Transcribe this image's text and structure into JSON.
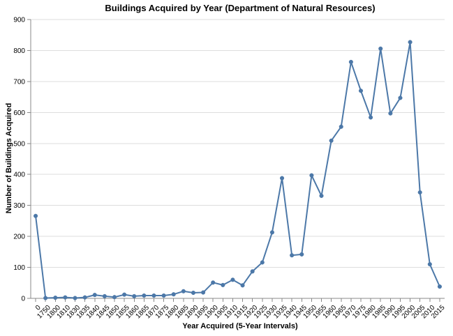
{
  "chart_data": {
    "type": "line",
    "title": "Buildings Acquired by Year (Department of Natural Resources)",
    "xlabel": "Year Acquired (5-Year Intervals)",
    "ylabel": "Number of Buildings Acquired",
    "ylim": [
      0,
      900
    ],
    "yticks": [
      0,
      100,
      200,
      300,
      400,
      500,
      600,
      700,
      800,
      900
    ],
    "grid": true,
    "colors": {
      "series": "#4c78a8"
    },
    "categories": [
      "0",
      "1750",
      "1800",
      "1810",
      "1830",
      "1835",
      "1840",
      "1845",
      "1850",
      "1855",
      "1860",
      "1865",
      "1870",
      "1875",
      "1880",
      "1885",
      "1890",
      "1895",
      "1900",
      "1905",
      "1910",
      "1915",
      "1920",
      "1925",
      "1930",
      "1935",
      "1940",
      "1945",
      "1950",
      "1955",
      "1960",
      "1965",
      "1970",
      "1975",
      "1980",
      "1985",
      "1990",
      "1995",
      "2000",
      "2005",
      "2010",
      "2015"
    ],
    "series": [
      {
        "values": [
          266,
          1,
          2,
          3,
          1,
          3,
          11,
          7,
          4,
          12,
          7,
          9,
          9,
          9,
          13,
          23,
          18,
          19,
          51,
          43,
          60,
          42,
          87,
          116,
          213,
          388,
          139,
          142,
          397,
          331,
          509,
          554,
          763,
          670,
          584,
          806,
          597,
          647,
          827,
          342,
          110,
          38
        ]
      }
    ]
  }
}
